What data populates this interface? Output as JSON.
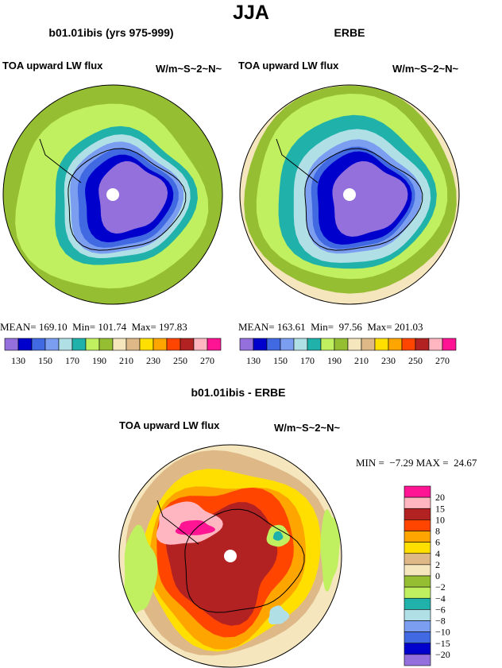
{
  "title": "JJA",
  "colors": [
    "#9370DB",
    "#0000CD",
    "#4169E1",
    "#7B9EF0",
    "#B0E0E6",
    "#20B2AA",
    "#C0F060",
    "#96BE32",
    "#F5E6BE",
    "#DEB887",
    "#FFDF00",
    "#FFA500",
    "#FF4500",
    "#B22222",
    "#FFB6C1",
    "#FF1493"
  ],
  "chart_data": [
    {
      "type": "contour",
      "title": "b01.01ibis (yrs 975-999)",
      "left_string": "TOA upward LW flux",
      "right_string": "W/m~S~2~N~",
      "projection": "south polar stereographic",
      "stats": {
        "mean_label": "MEAN=",
        "mean": "169.10",
        "min_label": "Min=",
        "min": "101.74",
        "max_label": "Max=",
        "max": "197.83"
      },
      "levels": [
        130,
        140,
        150,
        160,
        170,
        180,
        190,
        200,
        210,
        220,
        230,
        240,
        250,
        260,
        270
      ],
      "tick_labels": [
        "130",
        "150",
        "170",
        "190",
        "210",
        "230",
        "250",
        "270"
      ]
    },
    {
      "type": "contour",
      "title": "ERBE",
      "left_string": "TOA upward LW flux",
      "right_string": "W/m~S~2~N~",
      "projection": "south polar stereographic",
      "stats": {
        "mean_label": "MEAN=",
        "mean": "163.61",
        "min_label": "Min=",
        "min": "97.56",
        "max_label": "Max=",
        "max": "201.03"
      },
      "levels": [
        130,
        140,
        150,
        160,
        170,
        180,
        190,
        200,
        210,
        220,
        230,
        240,
        250,
        260,
        270
      ],
      "tick_labels": [
        "130",
        "150",
        "170",
        "190",
        "210",
        "230",
        "250",
        "270"
      ]
    },
    {
      "type": "contour",
      "title": "b01.01ibis - ERBE",
      "left_string": "TOA upward LW flux",
      "right_string": "W/m~S~2~N~",
      "projection": "south polar stereographic",
      "stats": {
        "min_label": "MIN =",
        "min": "−7.29",
        "max_label": "MAX =",
        "max": "24.67"
      },
      "levels": [
        -20,
        -15,
        -10,
        -8,
        -6,
        -4,
        -2,
        0,
        2,
        4,
        6,
        8,
        10,
        15,
        20
      ],
      "tick_labels": [
        "−20",
        "−15",
        "−10",
        "−8",
        "−6",
        "−4",
        "−2",
        "0",
        "2",
        "4",
        "6",
        "8",
        "10",
        "15",
        "20"
      ]
    }
  ]
}
